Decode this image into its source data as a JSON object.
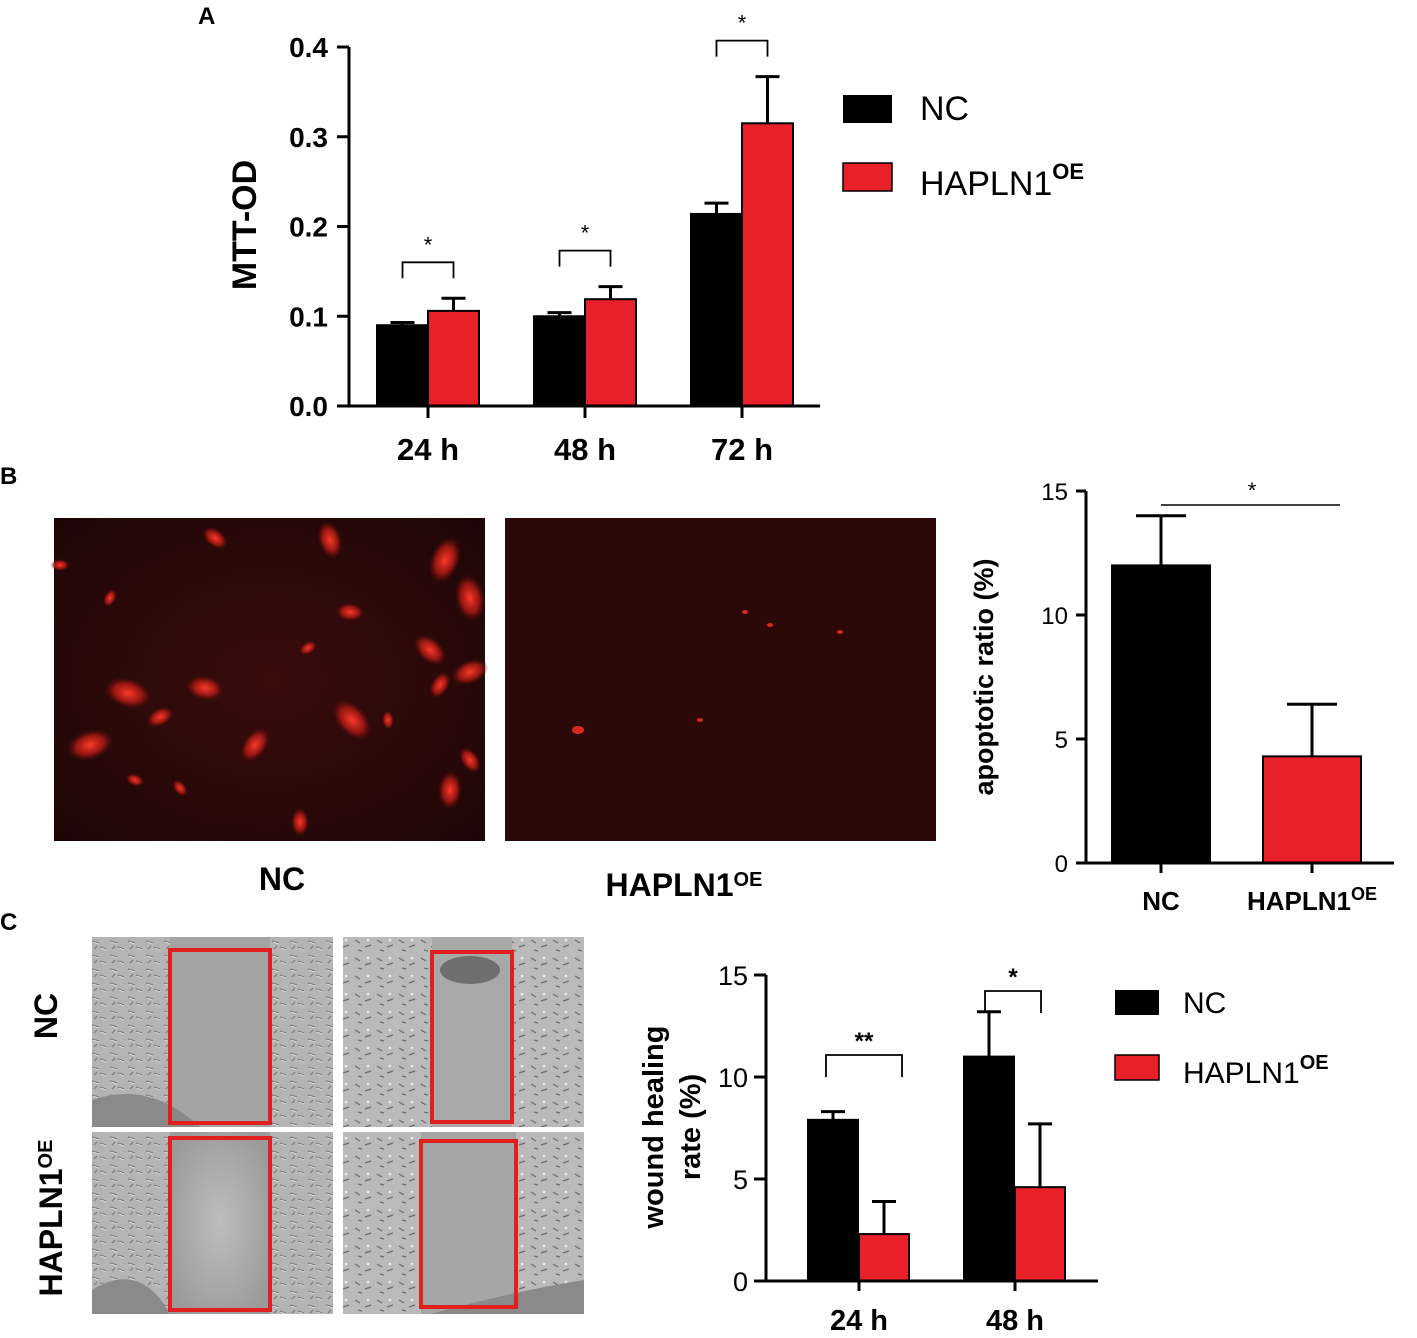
{
  "panels": {
    "A": {
      "label": "A"
    },
    "B": {
      "label": "B",
      "image_labels": [
        "NC",
        "HAPLN1"
      ],
      "image_label_sup": "OE"
    },
    "C": {
      "label": "C",
      "row_labels": [
        "NC",
        "HAPLN1"
      ],
      "row_label_sup": "OE"
    }
  },
  "colors": {
    "nc": "#000000",
    "oe": "#e8202a",
    "fluor_bg": "#2a0808",
    "cell_red": "#c0201a",
    "phase_bg": "#b8b8b8",
    "box": "#e02020"
  },
  "chart_data": [
    {
      "id": "A",
      "type": "bar",
      "categories": [
        "24 h",
        "48 h",
        "72 h"
      ],
      "series": [
        {
          "name": "NC",
          "values": [
            0.09,
            0.1,
            0.214
          ],
          "errors": [
            0.003,
            0.004,
            0.012
          ]
        },
        {
          "name": "HAPLN1",
          "name_sup": "OE",
          "values": [
            0.106,
            0.119,
            0.315
          ],
          "errors": [
            0.014,
            0.014,
            0.052
          ]
        }
      ],
      "ylabel": "MTT-OD",
      "ylim": [
        0,
        0.4
      ],
      "yticks": [
        "0.0",
        "0.1",
        "0.2",
        "0.3",
        "0.4"
      ],
      "significance": [
        "*",
        "*",
        "*"
      ],
      "legend": "right"
    },
    {
      "id": "B",
      "type": "bar",
      "categories": [
        "NC",
        "HAPLN1"
      ],
      "category_sup": "OE",
      "values": [
        12,
        4.3
      ],
      "errors": [
        2,
        2.1
      ],
      "ylabel": "apoptotic ratio (%)",
      "ylim": [
        0,
        15
      ],
      "yticks": [
        "0",
        "5",
        "10",
        "15"
      ],
      "significance": "*"
    },
    {
      "id": "C",
      "type": "bar",
      "categories": [
        "24 h",
        "48 h"
      ],
      "series": [
        {
          "name": "NC",
          "values": [
            7.9,
            11.0
          ],
          "errors": [
            0.4,
            2.2
          ]
        },
        {
          "name": "HAPLN1",
          "name_sup": "OE",
          "values": [
            2.3,
            4.6
          ],
          "errors": [
            1.6,
            3.1
          ]
        }
      ],
      "ylabel_lines": [
        "wound healing",
        "rate (%)"
      ],
      "ylim": [
        0,
        15
      ],
      "yticks": [
        "0",
        "5",
        "10",
        "15"
      ],
      "significance": [
        "**",
        "*"
      ],
      "legend": "right"
    }
  ]
}
